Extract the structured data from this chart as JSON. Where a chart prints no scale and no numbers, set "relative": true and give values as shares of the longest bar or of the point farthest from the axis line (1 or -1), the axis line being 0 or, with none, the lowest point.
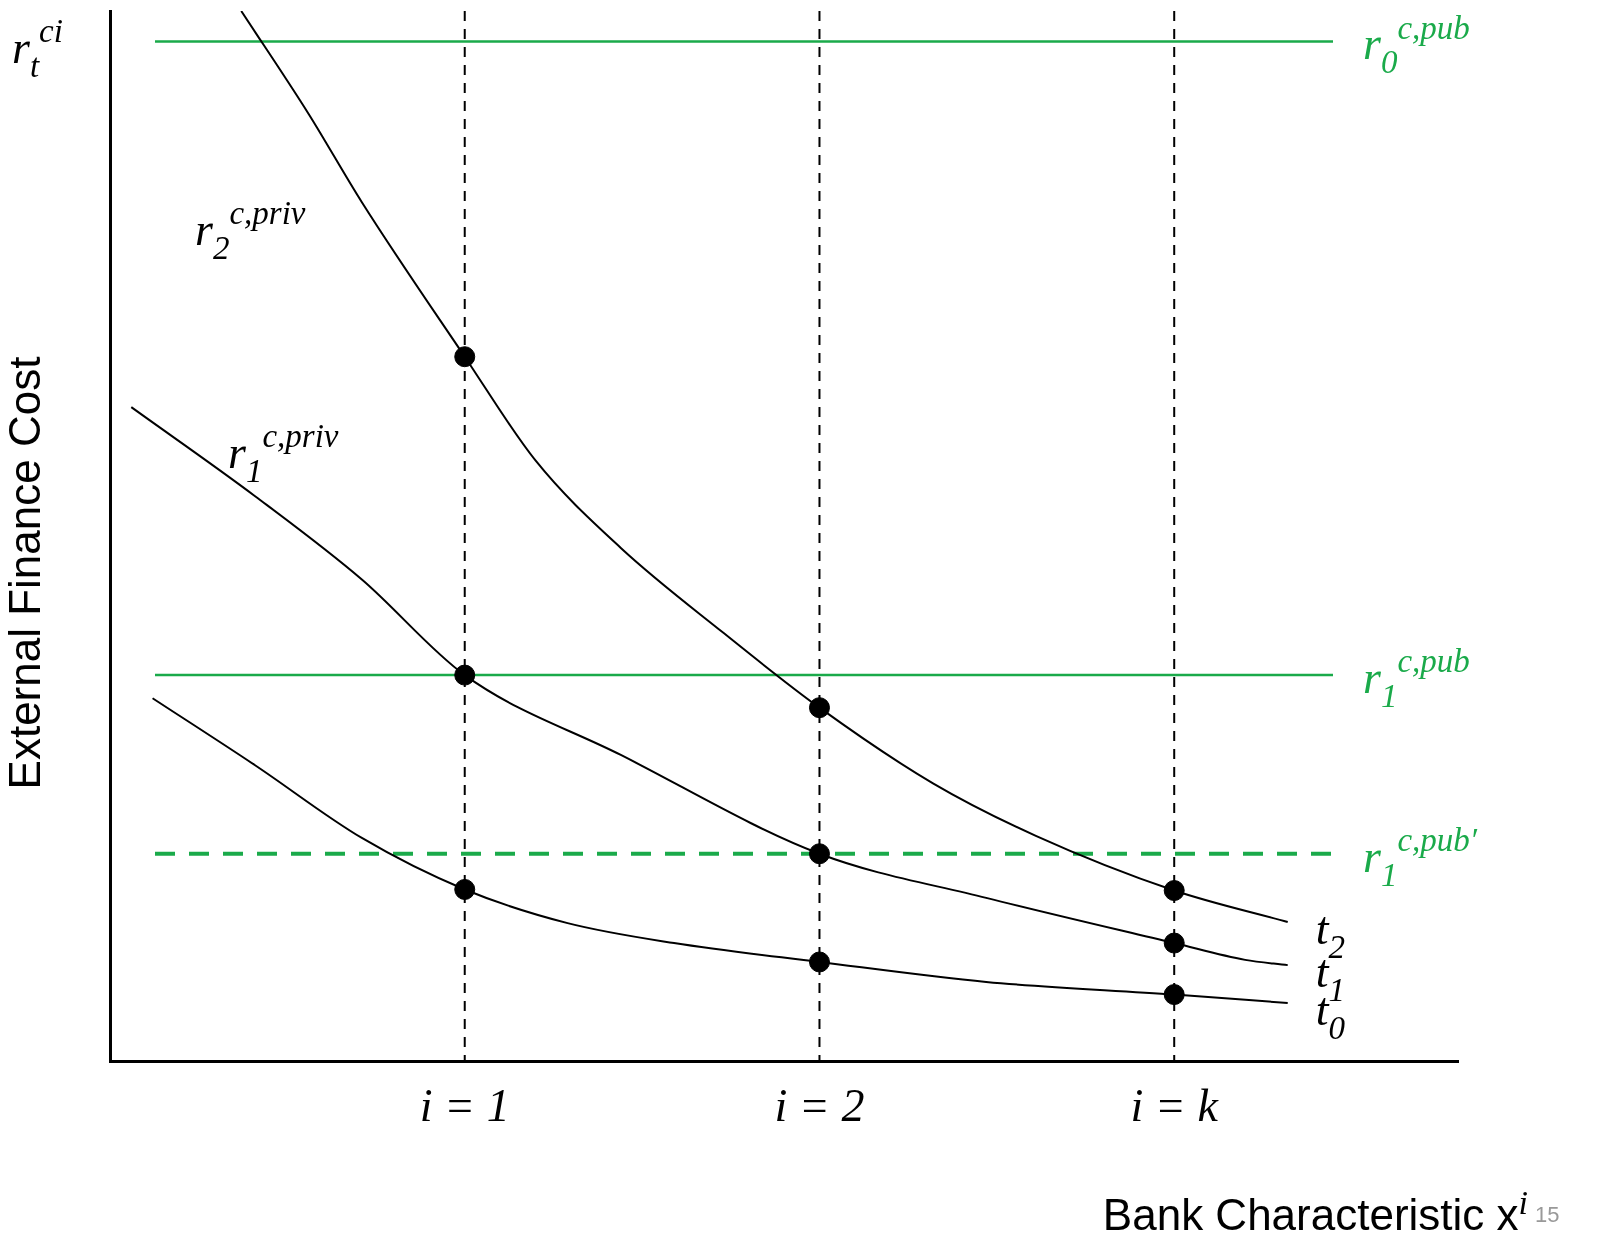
{
  "chart_data": {
    "type": "line",
    "xlabel": "Bank Characteristic x$^{i}$",
    "ylabel": "External Finance Cost",
    "relative": true,
    "legend": false,
    "grid": false,
    "marker": "none",
    "xlim": [
      0,
      3.8
    ],
    "xticks": [
      {
        "value": 1,
        "label": "i = 1"
      },
      {
        "value": 2,
        "label": "i = 2"
      },
      {
        "value": 3,
        "label": "i = k"
      }
    ],
    "series": [
      {
        "name": "t$_{2}$",
        "color": "#000000",
        "x": [
          0.37,
          0.56,
          0.71,
          1.0,
          1.2,
          1.44,
          1.73,
          2.0,
          2.32,
          2.61,
          3.0,
          3.32
        ],
        "values": [
          1.0,
          0.902,
          0.818,
          0.671,
          0.572,
          0.489,
          0.408,
          0.337,
          0.265,
          0.215,
          0.163,
          0.133
        ]
      },
      {
        "name": "t$_{1}$",
        "color": "#000000",
        "x": [
          0.06,
          0.41,
          0.71,
          1.0,
          1.44,
          2.0,
          2.47,
          3.0,
          3.2,
          3.32
        ],
        "values": [
          0.623,
          0.538,
          0.459,
          0.368,
          0.292,
          0.198,
          0.156,
          0.113,
          0.097,
          0.092
        ]
      },
      {
        "name": "t$_{0}$",
        "color": "#000000",
        "x": [
          0.12,
          0.41,
          0.71,
          1.0,
          1.29,
          1.59,
          2.0,
          2.47,
          3.0,
          3.32
        ],
        "values": [
          0.346,
          0.282,
          0.213,
          0.164,
          0.132,
          0.113,
          0.095,
          0.076,
          0.064,
          0.056
        ]
      },
      {
        "type": "scatter",
        "marker": "circle",
        "color": "#000000",
        "x": [
          1,
          1,
          1,
          2,
          2,
          2,
          3,
          3,
          3
        ],
        "values": [
          0.671,
          0.368,
          0.164,
          0.337,
          0.198,
          0.095,
          0.163,
          0.113,
          0.064
        ]
      }
    ],
    "ref_lines": [
      {
        "axis": "y",
        "value": 0.971,
        "label": "r$_{0}$$^{c,pub}$",
        "color": "#1aaa4a",
        "line_style": "solid"
      },
      {
        "axis": "y",
        "value": 0.368,
        "label": "r$_{1}$$^{c,pub}$",
        "color": "#1aaa4a",
        "line_style": "solid"
      },
      {
        "axis": "y",
        "value": 0.198,
        "label": "r$_{1}$$^{c,pub′}$",
        "color": "#1aaa4a",
        "line_style": "dashed"
      },
      {
        "axis": "x",
        "value": 1,
        "label": null,
        "color": "#000000",
        "line_style": "dashed"
      },
      {
        "axis": "x",
        "value": 2,
        "label": null,
        "color": "#000000",
        "line_style": "dashed"
      },
      {
        "axis": "x",
        "value": 3,
        "label": null,
        "color": "#000000",
        "line_style": "dashed"
      }
    ],
    "annotations": [
      "r$_{t}$$^{ci}$",
      "r$_{2}$$^{c,priv}$",
      "r$_{1}$$^{c,priv}$",
      "15"
    ]
  }
}
